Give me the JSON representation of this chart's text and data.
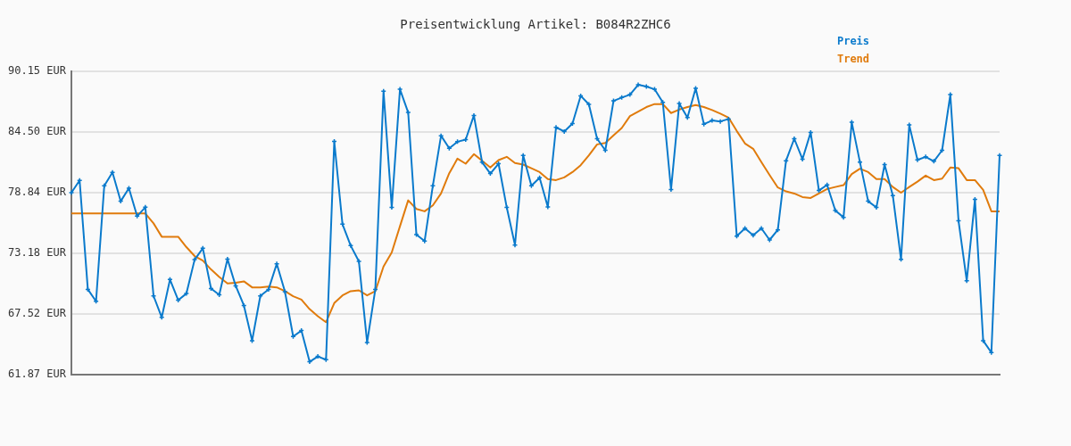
{
  "chart_data": {
    "type": "line",
    "title": "Preisentwicklung Artikel: B084R2ZHC6",
    "categories": [
      null,
      null,
      null,
      null,
      null,
      null,
      null,
      null,
      null,
      null,
      null,
      null,
      null,
      null,
      null,
      null,
      null,
      null,
      null,
      null,
      null,
      null,
      null,
      null,
      null,
      null,
      null,
      null,
      null,
      null,
      null,
      null,
      null,
      null,
      null,
      null,
      null,
      null,
      null,
      null,
      null,
      null,
      null,
      null,
      null,
      null,
      null,
      null,
      null,
      null,
      null,
      null,
      null,
      null,
      null,
      null,
      null,
      null,
      null,
      null,
      null,
      null,
      null,
      null,
      null,
      null,
      null,
      null,
      null,
      null,
      null,
      null,
      null,
      null,
      null,
      null,
      null,
      null,
      null,
      null,
      null,
      null,
      null,
      null,
      null,
      null,
      null,
      null,
      null,
      null,
      null,
      null,
      null,
      null,
      null,
      null,
      null,
      null,
      null,
      null,
      null,
      null,
      null,
      null,
      null,
      null,
      null,
      null,
      null,
      null,
      null,
      null,
      null,
      null
    ],
    "series": [
      {
        "name": "Preis",
        "color": "#0a7acc",
        "marker": "cross",
        "values": [
          78.84,
          79.98,
          69.82,
          68.71,
          79.48,
          80.73,
          78.04,
          79.26,
          76.65,
          77.48,
          69.21,
          67.21,
          70.74,
          68.82,
          69.43,
          72.59,
          73.65,
          69.9,
          69.32,
          72.65,
          70.15,
          68.32,
          65.04,
          69.21,
          69.82,
          72.21,
          69.6,
          65.43,
          65.98,
          63.07,
          63.57,
          63.26,
          83.62,
          75.9,
          73.9,
          72.43,
          64.87,
          69.82,
          88.29,
          77.46,
          88.48,
          86.32,
          74.93,
          74.32,
          79.48,
          84.15,
          82.98,
          83.59,
          83.79,
          86.04,
          81.68,
          80.62,
          81.54,
          77.46,
          73.96,
          82.32,
          79.48,
          80.23,
          77.51,
          84.93,
          84.54,
          85.29,
          87.87,
          87.07,
          83.87,
          82.79,
          87.4,
          87.71,
          87.98,
          88.9,
          88.73,
          88.48,
          87.26,
          79.12,
          87.15,
          85.84,
          88.57,
          85.23,
          85.57,
          85.48,
          85.71,
          74.79,
          75.51,
          74.87,
          75.51,
          74.43,
          75.37,
          81.82,
          83.87,
          81.96,
          84.46,
          79.04,
          79.57,
          77.18,
          76.54,
          85.4,
          81.68,
          78.04,
          77.46,
          81.46,
          78.57,
          72.62,
          85.15,
          81.9,
          82.18,
          81.76,
          82.79,
          87.98,
          76.21,
          70.63,
          78.21,
          65.04,
          63.93,
          82.32
        ]
      },
      {
        "name": "Trend",
        "color": "#e07b0c",
        "marker": "none",
        "values": [
          76.9,
          76.9,
          76.9,
          76.9,
          76.9,
          76.9,
          76.9,
          76.9,
          76.9,
          76.9,
          75.98,
          74.73,
          74.73,
          74.73,
          73.76,
          72.93,
          72.51,
          71.68,
          70.98,
          70.37,
          70.43,
          70.57,
          70.01,
          70.01,
          70.09,
          70.01,
          69.65,
          69.18,
          68.87,
          67.98,
          67.32,
          66.76,
          68.54,
          69.26,
          69.65,
          69.73,
          69.26,
          69.65,
          71.96,
          73.26,
          75.71,
          78.12,
          77.32,
          77.1,
          77.65,
          78.76,
          80.65,
          82.01,
          81.54,
          82.43,
          81.82,
          81.18,
          81.87,
          82.18,
          81.6,
          81.46,
          81.12,
          80.76,
          80.1,
          80.01,
          80.26,
          80.76,
          81.4,
          82.32,
          83.34,
          83.48,
          84.18,
          84.87,
          85.98,
          86.4,
          86.82,
          87.1,
          87.1,
          86.26,
          86.59,
          86.82,
          87.01,
          86.82,
          86.54,
          86.21,
          85.84,
          84.59,
          83.43,
          82.93,
          81.68,
          80.48,
          79.32,
          78.96,
          78.76,
          78.43,
          78.34,
          78.76,
          79.18,
          79.37,
          79.54,
          80.57,
          81.07,
          80.76,
          80.1,
          80.1,
          79.37,
          78.84,
          79.37,
          79.87,
          80.43,
          80.01,
          80.15,
          81.18,
          81.12,
          80.01,
          80.01,
          79.1,
          77.1,
          77.1
        ]
      }
    ],
    "ylim": [
      61.87,
      90.15
    ],
    "yticks": [
      {
        "value": 61.87,
        "label": "61.87 EUR"
      },
      {
        "value": 67.52,
        "label": "67.52 EUR"
      },
      {
        "value": 73.18,
        "label": "73.18 EUR"
      },
      {
        "value": 78.84,
        "label": "78.84 EUR"
      },
      {
        "value": 84.5,
        "label": "84.50 EUR"
      },
      {
        "value": 90.15,
        "label": "90.15 EUR"
      }
    ],
    "grid": "y",
    "legend": "top right",
    "tick_labels": "y",
    "line_style": "solid"
  }
}
